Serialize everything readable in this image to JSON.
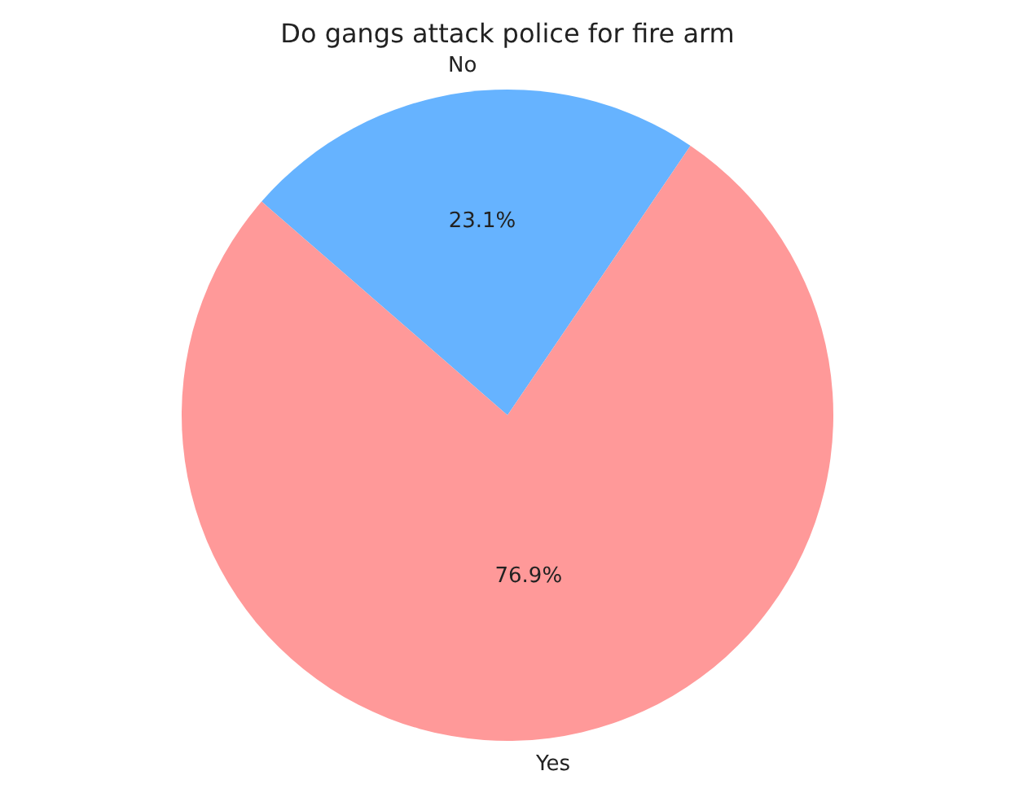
{
  "chart_data": {
    "type": "pie",
    "title": "Do gangs attack police for fire arm",
    "categories": [
      "No",
      "Yes"
    ],
    "values": [
      23.1,
      76.9
    ],
    "colors": [
      "#66b3ff",
      "#ff9999"
    ],
    "value_labels": [
      "23.1%",
      "76.9%"
    ],
    "legend": false
  }
}
